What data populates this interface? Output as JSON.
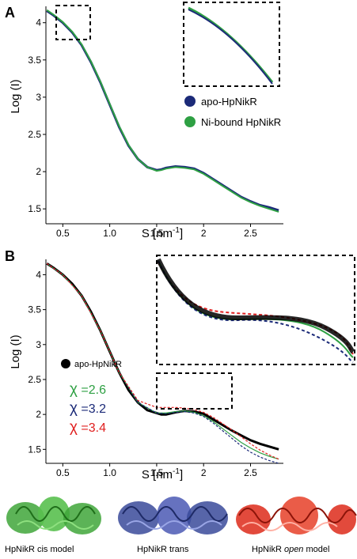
{
  "chart_data": [
    {
      "type": "line",
      "panel": "A",
      "xlabel": "S [nm",
      "xlabel_superscript": "-1",
      "xlabel_close": "]",
      "ylabel": "Log (I)",
      "xlim": [
        0.32,
        2.85
      ],
      "ylim": [
        1.3,
        4.22
      ],
      "xticks": [
        "0.5",
        "1.0",
        "1.5",
        "2",
        "2.5"
      ],
      "xtick_values": [
        0.5,
        1.0,
        1.5,
        2.0,
        2.5
      ],
      "yticks": [
        "1.5",
        "2",
        "2.5",
        "3",
        "3.5",
        "4"
      ],
      "ytick_values": [
        1.5,
        2.0,
        2.5,
        3.0,
        3.5,
        4.0
      ],
      "legend_position": "center-right",
      "series": [
        {
          "name": "apo-HpNikR",
          "color": "#1b2a78",
          "x": [
            0.33,
            0.4,
            0.5,
            0.6,
            0.7,
            0.8,
            0.9,
            1.0,
            1.1,
            1.2,
            1.3,
            1.4,
            1.5,
            1.55,
            1.6,
            1.7,
            1.8,
            1.9,
            2.0,
            2.1,
            2.2,
            2.3,
            2.4,
            2.5,
            2.6,
            2.7,
            2.8
          ],
          "values": [
            4.16,
            4.1,
            4.0,
            3.87,
            3.7,
            3.47,
            3.2,
            2.9,
            2.6,
            2.35,
            2.17,
            2.06,
            2.02,
            2.03,
            2.05,
            2.07,
            2.06,
            2.04,
            1.98,
            1.9,
            1.82,
            1.74,
            1.66,
            1.6,
            1.55,
            1.52,
            1.48
          ]
        },
        {
          "name": "Ni-bound HpNikR",
          "color": "#2ea043",
          "x": [
            0.33,
            0.4,
            0.5,
            0.6,
            0.7,
            0.8,
            0.9,
            1.0,
            1.1,
            1.2,
            1.3,
            1.4,
            1.5,
            1.55,
            1.6,
            1.7,
            1.8,
            1.9,
            2.0,
            2.1,
            2.2,
            2.3,
            2.4,
            2.5,
            2.6,
            2.7,
            2.8
          ],
          "values": [
            4.17,
            4.11,
            4.01,
            3.88,
            3.71,
            3.48,
            3.21,
            2.91,
            2.61,
            2.36,
            2.17,
            2.06,
            2.01,
            2.02,
            2.04,
            2.06,
            2.05,
            2.03,
            1.97,
            1.89,
            1.81,
            1.73,
            1.65,
            1.59,
            1.54,
            1.5,
            1.46
          ]
        }
      ]
    },
    {
      "type": "line",
      "panel": "B",
      "xlabel": "S [nm",
      "xlabel_superscript": "-1",
      "xlabel_close": "]",
      "ylabel": "Log (I)",
      "xlim": [
        0.32,
        2.85
      ],
      "ylim": [
        1.3,
        4.22
      ],
      "xticks": [
        "0.5",
        "1.0",
        "1.5",
        "2",
        "2.5"
      ],
      "xtick_values": [
        0.5,
        1.0,
        1.5,
        2.0,
        2.5
      ],
      "yticks": [
        "1.5",
        "2",
        "2.5",
        "3",
        "3.5",
        "4"
      ],
      "ytick_values": [
        1.5,
        2.0,
        2.5,
        3.0,
        3.5,
        4.0
      ],
      "legend_position": "center-left",
      "series": [
        {
          "name": "apo-HpNikR",
          "color": "#000000",
          "x": [
            0.33,
            0.4,
            0.5,
            0.6,
            0.7,
            0.8,
            0.9,
            1.0,
            1.1,
            1.2,
            1.3,
            1.4,
            1.5,
            1.55,
            1.6,
            1.7,
            1.8,
            1.9,
            2.0,
            2.1,
            2.2,
            2.3,
            2.4,
            2.5,
            2.6,
            2.7,
            2.8
          ],
          "values": [
            4.16,
            4.1,
            4.0,
            3.87,
            3.7,
            3.47,
            3.2,
            2.9,
            2.6,
            2.35,
            2.17,
            2.06,
            2.02,
            2.0,
            2.0,
            2.03,
            2.05,
            2.04,
            2.01,
            1.93,
            1.85,
            1.77,
            1.7,
            1.63,
            1.58,
            1.54,
            1.5
          ]
        },
        {
          "name": "cis",
          "color": "#2ea043",
          "x": [
            0.33,
            0.5,
            0.7,
            0.9,
            1.1,
            1.3,
            1.5,
            1.6,
            1.7,
            1.8,
            1.9,
            2.0,
            2.1,
            2.2,
            2.3,
            2.4,
            2.5,
            2.6,
            2.7,
            2.8
          ],
          "values": [
            4.16,
            4.0,
            3.7,
            3.2,
            2.6,
            2.17,
            2.02,
            2.02,
            2.04,
            2.05,
            2.03,
            1.98,
            1.9,
            1.8,
            1.7,
            1.6,
            1.52,
            1.45,
            1.4,
            1.36
          ]
        },
        {
          "name": "trans",
          "color": "#1b2a78",
          "x": [
            0.33,
            0.5,
            0.7,
            0.9,
            1.1,
            1.3,
            1.5,
            1.6,
            1.7,
            1.8,
            1.9,
            2.0,
            2.1,
            2.2,
            2.3,
            2.4,
            2.5,
            2.6,
            2.7,
            2.8
          ],
          "values": [
            4.16,
            4.0,
            3.7,
            3.2,
            2.6,
            2.17,
            2.02,
            2.01,
            2.03,
            2.04,
            2.02,
            1.97,
            1.88,
            1.77,
            1.66,
            1.55,
            1.46,
            1.39,
            1.34,
            1.3
          ]
        },
        {
          "name": "open",
          "color": "#e02020",
          "x": [
            0.33,
            0.5,
            0.7,
            0.9,
            1.1,
            1.3,
            1.5,
            1.6,
            1.7,
            1.8,
            1.9,
            2.0,
            2.1,
            2.2,
            2.3,
            2.4,
            2.5,
            2.6,
            2.7,
            2.8
          ],
          "values": [
            4.16,
            4.0,
            3.7,
            3.2,
            2.6,
            2.2,
            2.1,
            2.1,
            2.1,
            2.09,
            2.07,
            2.03,
            1.96,
            1.87,
            1.78,
            1.68,
            1.58,
            1.49,
            1.42,
            1.36
          ]
        }
      ],
      "legend": {
        "label": "apo-HpNikR"
      },
      "chi": [
        {
          "symbol": "χ",
          "text": " =2.6",
          "color": "#2ea043"
        },
        {
          "symbol": "χ",
          "text": " =3.2",
          "color": "#1b2a78"
        },
        {
          "symbol": "χ",
          "text": " =3.4",
          "color": "#e02020"
        }
      ]
    }
  ],
  "panels": {
    "a": "A",
    "b": "B"
  },
  "captions": {
    "cis": "HpNikR cis model",
    "trans": "HpNikR trans",
    "open_prefix": "HpNikR ",
    "open_italic": "open",
    "open_suffix": " model"
  },
  "colors": {
    "cis_model": "#3fa63a",
    "trans_model": "#3a4a9a",
    "open_model": "#dd2a1a"
  }
}
